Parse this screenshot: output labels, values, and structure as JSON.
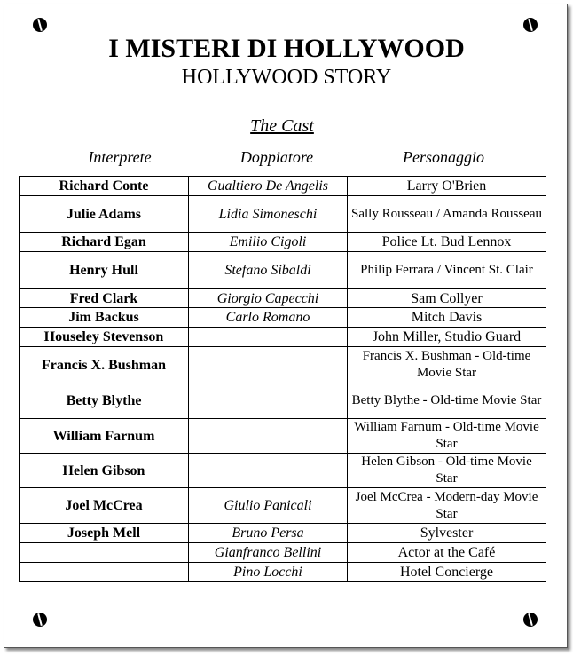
{
  "title": "I MISTERI DI HOLLYWOOD",
  "subtitle": "HOLLYWOOD STORY",
  "section": "The Cast",
  "columns": [
    "Interprete",
    "Doppiatore",
    "Personaggio"
  ],
  "rows": [
    {
      "actor": "Richard Conte",
      "dub": "Gualtiero De Angelis",
      "role": "Larry O'Brien"
    },
    {
      "actor": "Julie Adams",
      "dub": "Lidia Simoneschi",
      "role": "Sally Rousseau / Amanda Rousseau"
    },
    {
      "actor": "Richard Egan",
      "dub": "Emilio Cigoli",
      "role": "Police Lt. Bud Lennox"
    },
    {
      "actor": "Henry Hull",
      "dub": "Stefano Sibaldi",
      "role": "Philip Ferrara / Vincent St. Clair"
    },
    {
      "actor": "Fred Clark",
      "dub": "Giorgio Capecchi",
      "role": "Sam Collyer"
    },
    {
      "actor": "Jim Backus",
      "dub": "Carlo Romano",
      "role": "Mitch Davis"
    },
    {
      "actor": "Houseley Stevenson",
      "dub": "",
      "role": "John Miller, Studio Guard"
    },
    {
      "actor": "Francis X. Bushman",
      "dub": "",
      "role": "Francis X. Bushman - Old-time Movie Star"
    },
    {
      "actor": "Betty Blythe",
      "dub": "",
      "role": "Betty Blythe - Old-time Movie Star"
    },
    {
      "actor": "William Farnum",
      "dub": "",
      "role": "William Farnum - Old-time Movie Star"
    },
    {
      "actor": "Helen Gibson",
      "dub": "",
      "role": "Helen Gibson - Old-time Movie Star"
    },
    {
      "actor": "Joel McCrea",
      "dub": "Giulio Panicali",
      "role": "Joel McCrea - Modern-day Movie Star"
    },
    {
      "actor": "Joseph Mell",
      "dub": "Bruno Persa",
      "role": "Sylvester"
    },
    {
      "actor": "",
      "dub": "Gianfranco Bellini",
      "role": "Actor at the Café"
    },
    {
      "actor": "",
      "dub": "Pino Locchi",
      "role": "Hotel Concierge"
    }
  ]
}
